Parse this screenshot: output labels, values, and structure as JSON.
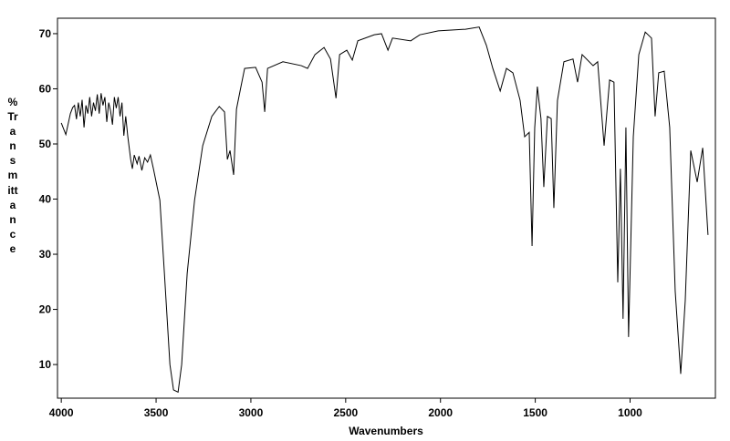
{
  "chart_data": {
    "type": "line",
    "xlabel": "Wavenumbers",
    "ylabel": "% Transmittance",
    "color": "#000000",
    "xlim": [
      4020,
      550
    ],
    "ylim": [
      3.9,
      72.8
    ],
    "xticks": [
      4000,
      3500,
      3000,
      2500,
      2000,
      1500,
      1000
    ],
    "yticks": [
      10,
      20,
      30,
      40,
      50,
      60,
      70
    ],
    "x": [
      4000,
      3976,
      3952,
      3940,
      3930,
      3920,
      3910,
      3900,
      3890,
      3880,
      3870,
      3860,
      3850,
      3840,
      3830,
      3820,
      3810,
      3800,
      3790,
      3780,
      3770,
      3760,
      3750,
      3740,
      3730,
      3720,
      3710,
      3700,
      3690,
      3680,
      3670,
      3660,
      3649,
      3634,
      3625,
      3615,
      3600,
      3590,
      3575,
      3560,
      3545,
      3530,
      3514,
      3480,
      3456,
      3427,
      3408,
      3384,
      3365,
      3336,
      3297,
      3254,
      3206,
      3167,
      3139,
      3124,
      3110,
      3091,
      3076,
      3057,
      3033,
      2975,
      2941,
      2927,
      2912,
      2831,
      2734,
      2701,
      2662,
      2614,
      2580,
      2551,
      2532,
      2494,
      2465,
      2436,
      2349,
      2311,
      2277,
      2253,
      2157,
      2109,
      2012,
      1868,
      1796,
      1758,
      1724,
      1685,
      1652,
      1618,
      1580,
      1556,
      1532,
      1517,
      1503,
      1489,
      1470,
      1455,
      1436,
      1416,
      1402,
      1383,
      1349,
      1301,
      1277,
      1253,
      1195,
      1171,
      1137,
      1108,
      1085,
      1065,
      1051,
      1037,
      1022,
      1008,
      983,
      954,
      920,
      887,
      868,
      849,
      820,
      791,
      762,
      733,
      709,
      680,
      646,
      617,
      589
    ],
    "values": [
      53.8,
      51.7,
      55.5,
      56.6,
      57,
      54.5,
      57.5,
      55,
      58,
      53,
      57,
      55.5,
      58.5,
      55,
      57.5,
      56,
      59,
      55.5,
      59.2,
      57,
      58.5,
      54,
      57.5,
      56,
      53.5,
      58.5,
      56.5,
      58.5,
      55,
      57.5,
      51.5,
      55,
      51.3,
      47.2,
      45.5,
      48,
      46.4,
      47.8,
      45.2,
      47.5,
      46.7,
      48,
      45.5,
      39.8,
      26.5,
      10,
      5.4,
      5.0,
      10,
      26.5,
      39.8,
      49.7,
      55,
      56.8,
      55.8,
      47.2,
      48.8,
      44.4,
      56.3,
      59.6,
      63.7,
      63.9,
      61.2,
      55.8,
      63.7,
      64.9,
      64.2,
      63.7,
      66.2,
      67.5,
      65.4,
      58.3,
      66.2,
      67,
      65.2,
      68.7,
      69.8,
      70,
      67,
      69.2,
      68.7,
      69.8,
      70.5,
      70.8,
      71.2,
      67.9,
      63.7,
      59.6,
      63.7,
      62.9,
      57.9,
      51.3,
      52.1,
      31.5,
      52.9,
      60.4,
      54.6,
      42.2,
      55,
      54.6,
      38.4,
      57.9,
      64.9,
      65.4,
      61.2,
      66.2,
      64.2,
      64.9,
      49.7,
      61.6,
      61.2,
      24.9,
      45.5,
      18.3,
      53,
      15,
      51.3,
      66.2,
      70.3,
      69.2,
      55,
      62.9,
      63.2,
      53,
      23.3,
      8.3,
      21.6,
      48.8,
      43.1,
      49.3,
      33.5
    ]
  }
}
